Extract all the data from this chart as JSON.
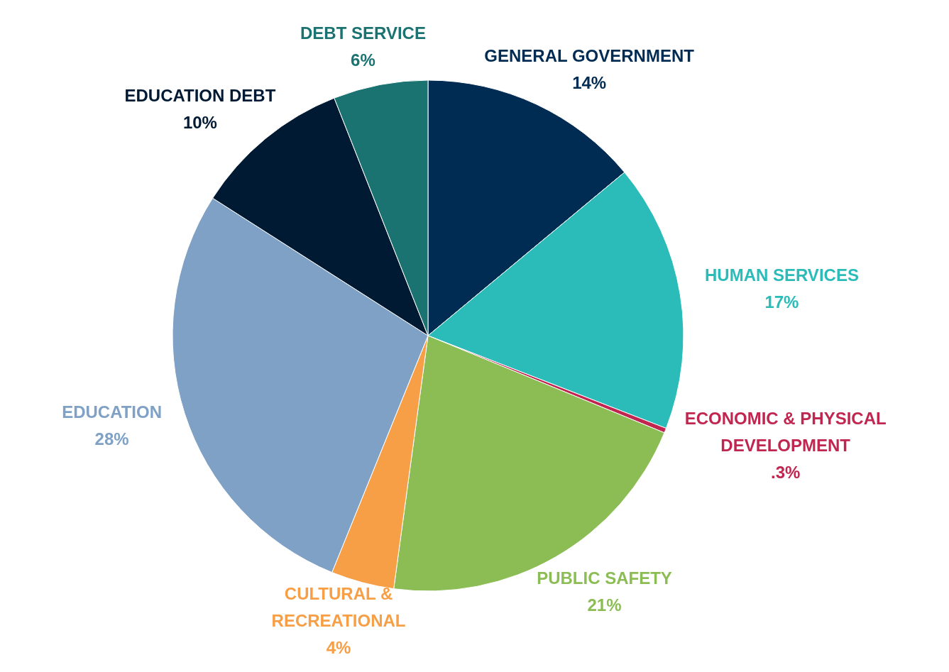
{
  "chart_data": {
    "type": "pie",
    "categories": [
      "GENERAL GOVERNMENT",
      "HUMAN SERVICES",
      "ECONOMIC & PHYSICAL DEVELOPMENT",
      "PUBLIC SAFETY",
      "CULTURAL & RECREATIONAL",
      "EDUCATION",
      "EDUCATION DEBT",
      "DEBT SERVICE"
    ],
    "values": [
      14,
      17,
      0.3,
      21,
      4,
      28,
      10,
      6
    ],
    "value_labels": [
      "14%",
      "17%",
      ".3%",
      "21%",
      "4%",
      "28%",
      "10%",
      "6%"
    ],
    "colors": [
      "#002b52",
      "#2bbcb9",
      "#c0264f",
      "#8cbd55",
      "#f79f46",
      "#7fa1c6",
      "#001a33",
      "#1a7370"
    ]
  }
}
